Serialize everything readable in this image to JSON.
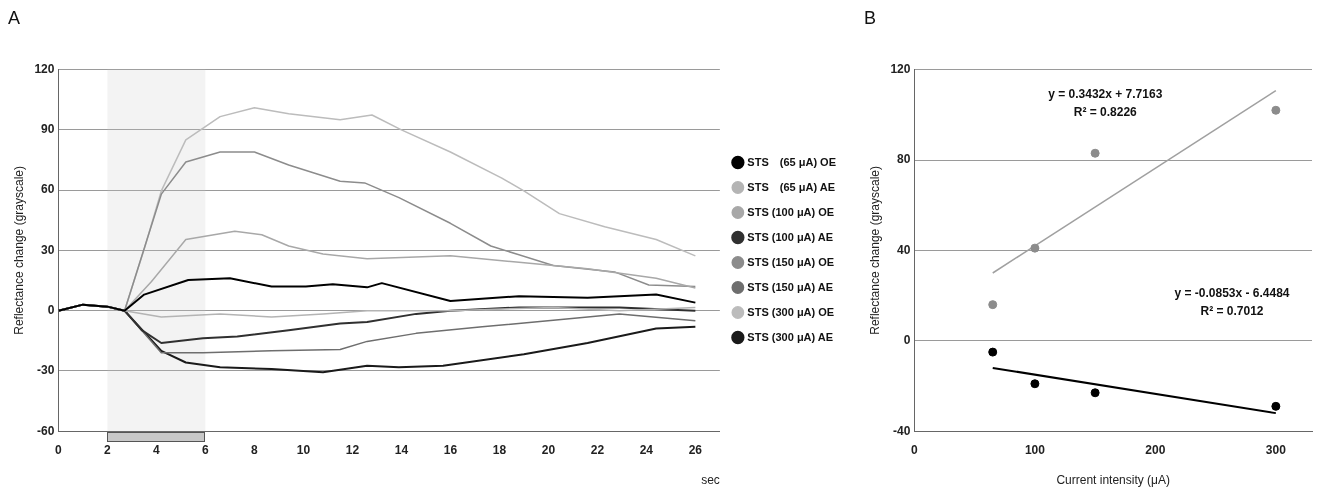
{
  "chart_data": [
    {
      "type": "line",
      "title": "A",
      "xlabel": "sec",
      "ylabel": "Reflectance change (grayscale)",
      "xlim": [
        0,
        27
      ],
      "xticks": [
        0,
        2,
        4,
        6,
        8,
        10,
        12,
        14,
        16,
        18,
        20,
        22,
        24,
        26
      ],
      "ylim": [
        -60,
        120
      ],
      "yticks": [
        -60,
        -30,
        0,
        30,
        60,
        90,
        120
      ],
      "grid": "y",
      "legend": "right",
      "marker": "none",
      "bands": [
        {
          "axis": "x",
          "from": 2,
          "to": 6,
          "color": "#c8c8c8"
        }
      ],
      "series": [
        {
          "name": "STS　(65 μA) OE",
          "color": "#000000",
          "x": [
            0,
            1,
            2,
            2.7,
            3.5,
            5.3,
            7.0,
            8.7,
            10.1,
            11.2,
            12.6,
            13.2,
            16,
            18.8,
            21.6,
            24.4,
            26
          ],
          "values": [
            0,
            3,
            2,
            0,
            8,
            15.3,
            16.1,
            12,
            12,
            13.2,
            11.6,
            13.7,
            4.8,
            7.2,
            6.4,
            8,
            4
          ]
        },
        {
          "name": "STS　(65 μA) AE",
          "color": "#b4b4b4",
          "x": [
            0,
            1,
            2,
            2.7,
            4.2,
            6.6,
            8.7,
            10.8,
            12.6,
            16,
            20.2,
            22.9,
            26
          ],
          "values": [
            0,
            3,
            2,
            0,
            -3.2,
            -1.6,
            -3.2,
            -1.6,
            0,
            0,
            1.6,
            0,
            1.6
          ]
        },
        {
          "name": "STS (100 μA) OE",
          "color": "#a8a8a8",
          "x": [
            0,
            1,
            2,
            2.7,
            3.8,
            5.2,
            7.2,
            8.3,
            9.4,
            10.8,
            12.6,
            16,
            18.8,
            21.6,
            24.4,
            26
          ],
          "values": [
            0,
            3,
            2,
            0,
            14.5,
            35.4,
            39.5,
            37.8,
            32.2,
            28.2,
            25.8,
            27.3,
            24.1,
            20.9,
            16.1,
            11.3
          ]
        },
        {
          "name": "STS (100 μA) AE",
          "color": "#303030",
          "x": [
            0,
            1,
            2,
            2.7,
            3.4,
            4.2,
            5.9,
            7.3,
            9.4,
            11.5,
            12.6,
            14.6,
            16,
            18.8,
            22.9,
            26
          ],
          "values": [
            0,
            3,
            2,
            0,
            -9.7,
            -16.1,
            -13.7,
            -12.9,
            -9.7,
            -6.4,
            -5.6,
            -1.6,
            0,
            1.6,
            1.6,
            0
          ]
        },
        {
          "name": "STS (150 μA) OE",
          "color": "#8c8c8c",
          "x": [
            0,
            1,
            2,
            2.7,
            4.2,
            5.2,
            6.6,
            8.0,
            9.4,
            11.5,
            12.5,
            13.9,
            16,
            17.65,
            20.2,
            22.7,
            24.1,
            26
          ],
          "values": [
            0,
            3,
            2,
            0,
            58,
            74,
            79,
            79,
            72.5,
            64.4,
            63.6,
            56.3,
            43.5,
            32.2,
            22.5,
            19.3,
            12.8,
            12
          ]
        },
        {
          "name": "STS (150 μA) AE",
          "color": "#6e6e6e",
          "x": [
            0,
            1,
            2,
            2.7,
            4.2,
            5.9,
            8.7,
            11.5,
            12.6,
            14.6,
            17.3,
            20.2,
            22.9,
            26
          ],
          "values": [
            0,
            3,
            2,
            0,
            -21,
            -21,
            -20,
            -19.3,
            -15.3,
            -11.3,
            -8,
            -4.8,
            -1.6,
            -5
          ]
        },
        {
          "name": "STS (300 μA) OE",
          "color": "#bcbcbc",
          "x": [
            0,
            1,
            2,
            2.7,
            3.5,
            4.2,
            5.2,
            6.6,
            8,
            9.4,
            11.5,
            12.8,
            14,
            16,
            18.1,
            19,
            20.45,
            22.3,
            24.4,
            26
          ],
          "values": [
            0,
            3,
            2,
            0,
            30.6,
            59.6,
            85,
            96.6,
            101,
            98,
            95,
            97.4,
            90,
            79,
            66,
            59.6,
            48.3,
            41.8,
            35.4,
            27.3
          ]
        },
        {
          "name": "STS (300 μA) AE",
          "color": "#1a1a1a",
          "x": [
            0,
            1,
            2,
            2.7,
            4.2,
            5.2,
            6.6,
            8.7,
            10.8,
            12.6,
            13.9,
            15.7,
            19,
            21.6,
            24.4,
            26
          ],
          "values": [
            0,
            3,
            2,
            0,
            -20,
            -25.8,
            -28.2,
            -29,
            -30.6,
            -27.4,
            -28.2,
            -27.4,
            -21.7,
            -16.1,
            -8.9,
            -8
          ]
        }
      ]
    },
    {
      "type": "scatter",
      "title": "B",
      "xlabel": "Current intensity (μA)",
      "ylabel": "Reflectance change (grayscale)",
      "xlim": [
        0,
        330
      ],
      "xticks": [
        0,
        100,
        200,
        300
      ],
      "ylim": [
        -40,
        120
      ],
      "yticks": [
        -40,
        0,
        40,
        80,
        120
      ],
      "grid": "y",
      "marker": "circle",
      "annotations": [
        "y = 0.3432x + 7.7163",
        "R² = 0.8226",
        "y = -0.0853x - 6.4484",
        "R² = 0.7012"
      ],
      "series": [
        {
          "type": "scatter",
          "color": "#8c8c8c",
          "x": [
            65,
            100,
            150,
            300
          ],
          "values": [
            16,
            41,
            83,
            102
          ]
        },
        {
          "type": "scatter",
          "color": "#000000",
          "x": [
            65,
            100,
            150,
            300
          ],
          "values": [
            -5,
            -19,
            -23,
            -29
          ]
        },
        {
          "type": "line",
          "marker": "none",
          "color": "#a0a0a0",
          "x": [
            65,
            300
          ],
          "values": [
            30,
            110.7
          ]
        },
        {
          "type": "line",
          "marker": "none",
          "color": "#000000",
          "x": [
            65,
            300
          ],
          "values": [
            -12,
            -32
          ]
        }
      ]
    }
  ]
}
